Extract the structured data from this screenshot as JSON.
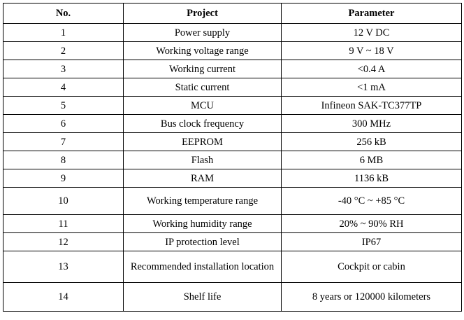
{
  "table": {
    "headers": {
      "no": "No.",
      "project": "Project",
      "parameter": "Parameter"
    },
    "rows": [
      {
        "no": "1",
        "project": "Power supply",
        "parameter": "12 V DC"
      },
      {
        "no": "2",
        "project": "Working voltage range",
        "parameter": "9 V ~ 18 V"
      },
      {
        "no": "3",
        "project": "Working current",
        "parameter": "<0.4 A"
      },
      {
        "no": "4",
        "project": "Static current",
        "parameter": "<1 mA"
      },
      {
        "no": "5",
        "project": "MCU",
        "parameter": "Infineon SAK-TC377TP"
      },
      {
        "no": "6",
        "project": "Bus clock frequency",
        "parameter": "300 MHz"
      },
      {
        "no": "7",
        "project": "EEPROM",
        "parameter": "256 kB"
      },
      {
        "no": "8",
        "project": "Flash",
        "parameter": "6 MB"
      },
      {
        "no": "9",
        "project": "RAM",
        "parameter": "1136 kB"
      },
      {
        "no": "10",
        "project": "Working temperature range",
        "parameter": "-40 °C ~ +85 °C"
      },
      {
        "no": "11",
        "project": "Working humidity range",
        "parameter": "20% ~ 90% RH"
      },
      {
        "no": "12",
        "project": "IP protection level",
        "parameter": "IP67"
      },
      {
        "no": "13",
        "project": "Recommended installation location",
        "parameter": "Cockpit or cabin"
      },
      {
        "no": "14",
        "project": "Shelf life",
        "parameter": "8 years or 120000 kilometers"
      }
    ]
  }
}
